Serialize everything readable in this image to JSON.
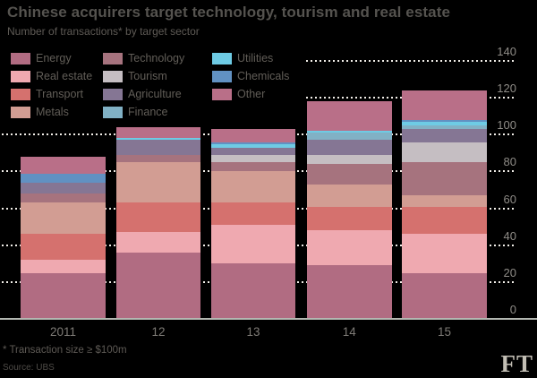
{
  "title": "Chinese acquirers target technology, tourism and real estate",
  "subtitle": "Number of transactions* by target sector",
  "footnote": "* Transaction size ≥ $100m",
  "source": "Source: UBS",
  "logo_text": "FT",
  "colors": {
    "background": "#000000",
    "gridline_dots": "#f1eee8",
    "axis_baseline": "#b3b7b1",
    "title_text": "#55534f",
    "axis_label_text": "#8f8c87"
  },
  "chart_data": {
    "type": "bar",
    "stacked": true,
    "title": "Chinese acquirers target technology, tourism and real estate",
    "subtitle": "Number of transactions* by target sector",
    "xlabel": "",
    "ylabel": "",
    "categories": [
      "2011",
      "12",
      "13",
      "14",
      "15"
    ],
    "series": [
      {
        "name": "Energy",
        "color": "#b16c82",
        "values": [
          25,
          36,
          30,
          29,
          25
        ]
      },
      {
        "name": "Real estate",
        "color": "#efa9b0",
        "values": [
          7,
          11,
          21,
          19,
          21
        ]
      },
      {
        "name": "Transport",
        "color": "#d5716e",
        "values": [
          14,
          16,
          12,
          13,
          15
        ]
      },
      {
        "name": "Metals",
        "color": "#d29d93",
        "values": [
          17,
          22,
          17,
          12,
          6
        ]
      },
      {
        "name": "Technology",
        "color": "#a6737e",
        "values": [
          5,
          4,
          5,
          11,
          18
        ]
      },
      {
        "name": "Tourism",
        "color": "#c5bec2",
        "values": [
          0,
          0,
          4,
          5,
          11
        ]
      },
      {
        "name": "Agriculture",
        "color": "#857694",
        "values": [
          6,
          8,
          4,
          8,
          7
        ]
      },
      {
        "name": "Finance",
        "color": "#81b1c5",
        "values": [
          0,
          0,
          0,
          4,
          2
        ]
      },
      {
        "name": "Utilities",
        "color": "#6ecbe4",
        "values": [
          0,
          1,
          2,
          1,
          2
        ]
      },
      {
        "name": "Chemicals",
        "color": "#6191c2",
        "values": [
          5,
          0,
          1,
          0,
          1
        ]
      },
      {
        "name": "Other",
        "color": "#b96f88",
        "values": [
          9,
          6,
          7,
          16,
          16
        ]
      }
    ],
    "totals": [
      88,
      104,
      103,
      118,
      124
    ],
    "ylim": [
      0,
      140
    ],
    "yticks": [
      0,
      20,
      40,
      60,
      80,
      100,
      120,
      140
    ],
    "grid": true,
    "grid_style": "dotted",
    "legend_position": "top-left",
    "legend_columns": [
      [
        "Energy",
        "Real estate",
        "Transport",
        "Metals"
      ],
      [
        "Technology",
        "Tourism",
        "Agriculture",
        "Finance"
      ],
      [
        "Utilities",
        "Chemicals",
        "Other"
      ]
    ]
  }
}
